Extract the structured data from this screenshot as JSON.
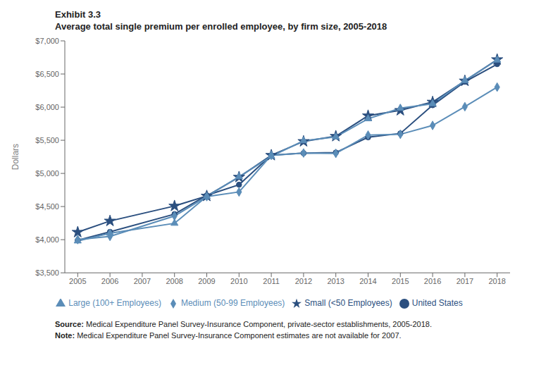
{
  "chart_data": {
    "type": "line",
    "title": "Exhibit 3.3",
    "subtitle": "Average total single premium per enrolled employee, by firm size, 2005-2018",
    "y_label": "Dollars",
    "annotations": [
      "Source: Medical Expenditure Panel Survey-Insurance Component, private-sector establishments, 2005-2018.",
      "Note: Medical Expenditure Panel Survey-Insurance Component estimates are not available for 2007."
    ],
    "x": [
      2005,
      2006,
      2008,
      2009,
      2010,
      2011,
      2012,
      2013,
      2014,
      2015,
      2016,
      2017,
      2018
    ],
    "series": [
      {
        "name": "United States",
        "color": "#2b4f7f",
        "marker": "circle",
        "values": [
          3991,
          4118,
          4386,
          4669,
          4830,
          5274,
          5306,
          5315,
          5545,
          5603,
          6029,
          6383,
          6649
        ]
      },
      {
        "name": "Small (<50 Employees)",
        "color": "#2b4f7f",
        "marker": "star",
        "values": [
          4113,
          4282,
          4508,
          4659,
          4944,
          5274,
          5483,
          5561,
          5870,
          5952,
          6077,
          6396,
          6718
        ]
      },
      {
        "name": "Medium (50-99 Employees)",
        "color": "#5b8db8",
        "marker": "diamond",
        "values": [
          4001,
          4050,
          4357,
          4650,
          4720,
          5273,
          5308,
          5302,
          5578,
          5590,
          5724,
          6007,
          6302
        ]
      },
      {
        "name": "Large (100+ Employees)",
        "color": "#5b8db8",
        "marker": "triangle",
        "values": [
          3981,
          4098,
          4247,
          4652,
          4950,
          5258,
          5493,
          5551,
          5824,
          5984,
          6051,
          6401,
          6710
        ]
      }
    ],
    "xlim": [
      2004.6,
      2018.4
    ],
    "xticks": [
      2005,
      2006,
      2007,
      2008,
      2009,
      2010,
      2011,
      2012,
      2013,
      2014,
      2015,
      2016,
      2017,
      2018
    ],
    "ylim": [
      3500,
      7000
    ],
    "yticks": [
      {
        "value": 3500,
        "label": "$3,500"
      },
      {
        "value": 4000,
        "label": "$4,000"
      },
      {
        "value": 4500,
        "label": "$4,500"
      },
      {
        "value": 5000,
        "label": "$5,000"
      },
      {
        "value": 5500,
        "label": "$5,500"
      },
      {
        "value": 6000,
        "label": "$6,000"
      },
      {
        "value": 6500,
        "label": "$6,500"
      },
      {
        "value": 7000,
        "label": "$7,000"
      }
    ],
    "grid": false,
    "legend": "bottom"
  }
}
